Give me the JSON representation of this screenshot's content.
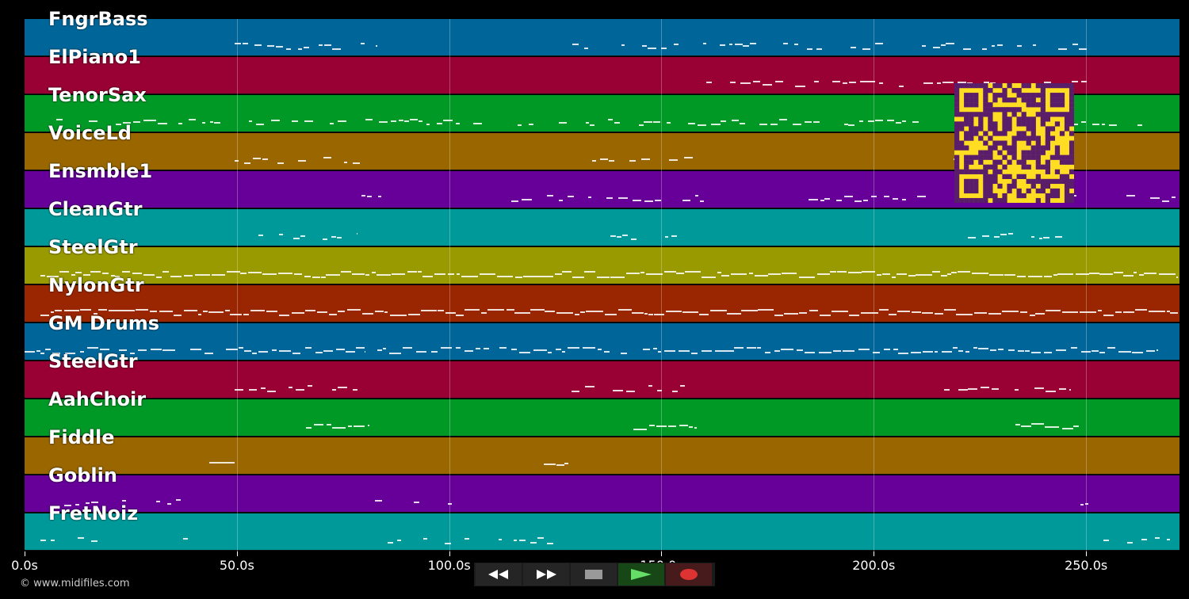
{
  "tracks": [
    {
      "name": "FngrBass",
      "color": "#006699"
    },
    {
      "name": "ElPiano1",
      "color": "#990033"
    },
    {
      "name": "TenorSax",
      "color": "#009926"
    },
    {
      "name": "VoiceLd",
      "color": "#996600"
    },
    {
      "name": "Ensmble1",
      "color": "#660099"
    },
    {
      "name": "CleanGtr",
      "color": "#009999"
    },
    {
      "name": "SteelGtr",
      "color": "#999900"
    },
    {
      "name": "NylonGtr",
      "color": "#992600"
    },
    {
      "name": "GM Drums",
      "color": "#006699"
    },
    {
      "name": "SteelGtr",
      "color": "#990033"
    },
    {
      "name": "AahChoir",
      "color": "#009926"
    },
    {
      "name": "Fiddle",
      "color": "#996600"
    },
    {
      "name": "Goblin",
      "color": "#660099"
    },
    {
      "name": "FretNoiz",
      "color": "#009999"
    }
  ],
  "timeline": {
    "ticks": [
      "0.0s",
      "50.0s",
      "100.0s",
      "150.0s",
      "200.0s",
      "250.0s"
    ],
    "tick_seconds": [
      0,
      50,
      100,
      150,
      200,
      250
    ],
    "duration_seconds": 272
  },
  "transport": [
    {
      "name": "rewind-icon",
      "label": "Rewind"
    },
    {
      "name": "fast-forward-icon",
      "label": "Fast forward"
    },
    {
      "name": "stop-icon",
      "label": "Stop"
    },
    {
      "name": "play-icon",
      "label": "Play"
    },
    {
      "name": "record-icon",
      "label": "Record"
    }
  ],
  "copyright": "© www.midifiles.com",
  "qr_icon": "qr-code-icon",
  "colors": {
    "background": "#000000",
    "qr_fg": "#5a1d6a",
    "qr_bg": "#ffdd22"
  }
}
